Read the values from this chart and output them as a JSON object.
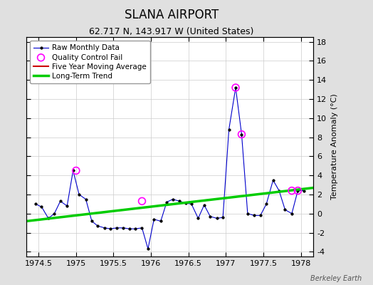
{
  "title": "SLANA AIRPORT",
  "subtitle": "62.717 N, 143.917 W (United States)",
  "ylabel": "Temperature Anomaly (°C)",
  "watermark": "Berkeley Earth",
  "xlim": [
    1974.333,
    1978.167
  ],
  "ylim": [
    -4.5,
    18.5
  ],
  "yticks": [
    -4,
    -2,
    0,
    2,
    4,
    6,
    8,
    10,
    12,
    14,
    16,
    18
  ],
  "xticks": [
    1974.5,
    1975.0,
    1975.5,
    1976.0,
    1976.5,
    1977.0,
    1977.5,
    1978.0
  ],
  "xticklabels": [
    "1974.5",
    "1975",
    "1975.5",
    "1976",
    "1976.5",
    "1977",
    "1977.5",
    "1978"
  ],
  "raw_x": [
    1974.46,
    1974.54,
    1974.63,
    1974.71,
    1974.79,
    1974.88,
    1974.96,
    1975.04,
    1975.13,
    1975.21,
    1975.29,
    1975.38,
    1975.46,
    1975.54,
    1975.63,
    1975.71,
    1975.79,
    1975.88,
    1975.96,
    1976.04,
    1976.13,
    1976.21,
    1976.29,
    1976.38,
    1976.46,
    1976.54,
    1976.63,
    1976.71,
    1976.79,
    1976.88,
    1976.96,
    1977.04,
    1977.13,
    1977.21,
    1977.29,
    1977.38,
    1977.46,
    1977.54,
    1977.63,
    1977.71,
    1977.79,
    1977.88,
    1977.96,
    1978.04
  ],
  "raw_y": [
    1.0,
    0.7,
    -0.5,
    0.0,
    1.3,
    0.8,
    4.5,
    2.0,
    1.5,
    -0.8,
    -1.3,
    -1.5,
    -1.6,
    -1.5,
    -1.5,
    -1.6,
    -1.6,
    -1.5,
    -3.7,
    -0.6,
    -0.8,
    1.2,
    1.5,
    1.3,
    1.1,
    1.0,
    -0.5,
    0.9,
    -0.3,
    -0.5,
    -0.4,
    8.8,
    13.2,
    8.3,
    0.0,
    -0.2,
    -0.2,
    1.0,
    3.5,
    2.4,
    0.4,
    0.0,
    2.4,
    2.4
  ],
  "qc_fail_x": [
    1975.0,
    1975.88,
    1977.13,
    1977.21,
    1977.88,
    1977.96
  ],
  "qc_fail_y": [
    4.5,
    1.3,
    13.2,
    8.3,
    2.4,
    2.4
  ],
  "trend_x": [
    1974.333,
    1978.167
  ],
  "trend_y": [
    -0.8,
    2.7
  ],
  "bg_color": "#e0e0e0",
  "plot_bg_color": "#ffffff",
  "raw_line_color": "#0000cc",
  "raw_marker_color": "#000000",
  "qc_color": "#ff00ff",
  "trend_color": "#00cc00",
  "mavg_color": "#cc0000",
  "grid_color": "#cccccc",
  "title_fontsize": 12,
  "subtitle_fontsize": 9,
  "tick_fontsize": 8,
  "ylabel_fontsize": 8
}
